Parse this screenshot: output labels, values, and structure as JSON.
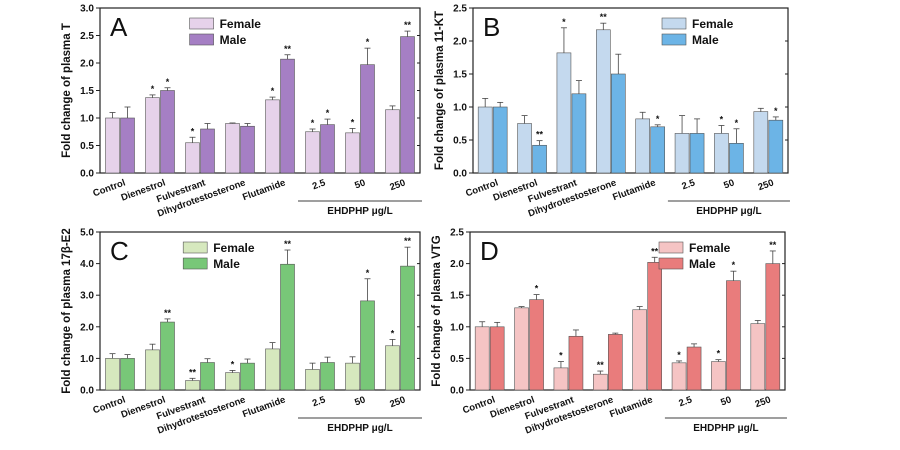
{
  "figure": {
    "group_label": "EHDPHP μg/L",
    "categories": [
      "Control",
      "Dienestrol",
      "Fulvestrant",
      "Dihydrotestosterone",
      "Flutamide",
      "2.5",
      "50",
      "250"
    ]
  },
  "chart_data": [
    {
      "type": "bar",
      "panel_letter": "A",
      "ylabel": "Fold change of plasma T",
      "ylim": [
        0,
        3.0
      ],
      "yticks": [
        "0.0",
        "0.5",
        "1.0",
        "1.5",
        "2.0",
        "2.5",
        "3.0"
      ],
      "yticks_values": [
        0,
        0.5,
        1.0,
        1.5,
        2.0,
        2.5,
        3.0
      ],
      "categories": [
        "Control",
        "Dienestrol",
        "Fulvestrant",
        "Dihydrotestosterone",
        "Flutamide",
        "2.5",
        "50",
        "250"
      ],
      "group_label": "EHDPHP μg/L",
      "colors": {
        "female": "#e6d2ea",
        "male": "#a57fc4"
      },
      "series": [
        {
          "name": "Female",
          "values": [
            1.0,
            1.37,
            0.55,
            0.9,
            1.33,
            0.75,
            0.73,
            1.15
          ],
          "errors": [
            0.1,
            0.05,
            0.1,
            0.01,
            0.05,
            0.05,
            0.08,
            0.07
          ],
          "marks": [
            "",
            "*",
            "*",
            "",
            "*",
            "*",
            "*",
            ""
          ]
        },
        {
          "name": "Male",
          "values": [
            1.0,
            1.5,
            0.8,
            0.85,
            2.07,
            0.88,
            1.97,
            2.48
          ],
          "errors": [
            0.2,
            0.05,
            0.1,
            0.05,
            0.08,
            0.1,
            0.3,
            0.1
          ],
          "marks": [
            "",
            "*",
            "",
            "",
            "**",
            "*",
            "*",
            "**"
          ]
        }
      ]
    },
    {
      "type": "bar",
      "panel_letter": "B",
      "ylabel": "Fold change of plasma 11-KT",
      "ylim": [
        0,
        2.5
      ],
      "yticks": [
        "0.0",
        "0.5",
        "1.0",
        "1.5",
        "2.0",
        "2.5"
      ],
      "yticks_values": [
        0,
        0.5,
        1.0,
        1.5,
        2.0,
        2.5
      ],
      "categories": [
        "Control",
        "Dienestrol",
        "Fulvestrant",
        "Dihydrotestosterone",
        "Flutamide",
        "2.5",
        "50",
        "250"
      ],
      "group_label": "EHDPHP μg/L",
      "colors": {
        "female": "#c4d9ee",
        "male": "#6cb4e6"
      },
      "series": [
        {
          "name": "Female",
          "values": [
            1.0,
            0.75,
            1.82,
            2.17,
            0.82,
            0.6,
            0.6,
            0.93
          ],
          "errors": [
            0.13,
            0.12,
            0.38,
            0.1,
            0.1,
            0.27,
            0.12,
            0.05
          ],
          "marks": [
            "",
            "",
            "*",
            "**",
            "",
            "",
            "*",
            ""
          ]
        },
        {
          "name": "Male",
          "values": [
            1.0,
            0.42,
            1.2,
            1.5,
            0.7,
            0.6,
            0.45,
            0.8
          ],
          "errors": [
            0.07,
            0.07,
            0.2,
            0.3,
            0.03,
            0.22,
            0.22,
            0.05
          ],
          "marks": [
            "",
            "**",
            "",
            "",
            "*",
            "",
            "*",
            "*"
          ]
        }
      ]
    },
    {
      "type": "bar",
      "panel_letter": "C",
      "ylabel": "Fold change of plasma 17β-E2",
      "ylim": [
        0,
        5.0
      ],
      "yticks": [
        "0.0",
        "1.0",
        "2.0",
        "3.0",
        "4.0",
        "5.0"
      ],
      "yticks_values": [
        0,
        1.0,
        2.0,
        3.0,
        4.0,
        5.0
      ],
      "categories": [
        "Control",
        "Dienestrol",
        "Fulvestrant",
        "Dihydrotestosterone",
        "Flutamide",
        "2.5",
        "50",
        "250"
      ],
      "group_label": "EHDPHP μg/L",
      "colors": {
        "female": "#d6e8be",
        "male": "#78c778"
      },
      "series": [
        {
          "name": "Female",
          "values": [
            1.0,
            1.27,
            0.3,
            0.55,
            1.3,
            0.65,
            0.85,
            1.4
          ],
          "errors": [
            0.15,
            0.18,
            0.07,
            0.07,
            0.2,
            0.2,
            0.2,
            0.2
          ],
          "marks": [
            "",
            "",
            "**",
            "*",
            "",
            "",
            "",
            "*"
          ]
        },
        {
          "name": "Male",
          "values": [
            1.0,
            2.15,
            0.87,
            0.85,
            3.98,
            0.87,
            2.82,
            3.92
          ],
          "errors": [
            0.12,
            0.1,
            0.12,
            0.13,
            0.45,
            0.17,
            0.7,
            0.6
          ],
          "marks": [
            "",
            "**",
            "",
            "",
            "**",
            "",
            "*",
            "**"
          ]
        }
      ]
    },
    {
      "type": "bar",
      "panel_letter": "D",
      "ylabel": "Fold change of plasma VTG",
      "ylim": [
        0,
        2.5
      ],
      "yticks": [
        "0.0",
        "0.5",
        "1.0",
        "1.5",
        "2.0",
        "2.5"
      ],
      "yticks_values": [
        0,
        0.5,
        1.0,
        1.5,
        2.0,
        2.5
      ],
      "categories": [
        "Control",
        "Dienestrol",
        "Fulvestrant",
        "Dihydrotestosterone",
        "Flutamide",
        "2.5",
        "50",
        "250"
      ],
      "group_label": "EHDPHP μg/L",
      "colors": {
        "female": "#f5c4c4",
        "male": "#e97c7c"
      },
      "series": [
        {
          "name": "Female",
          "values": [
            1.0,
            1.3,
            0.35,
            0.25,
            1.27,
            0.43,
            0.45,
            1.05
          ],
          "errors": [
            0.08,
            0.02,
            0.1,
            0.05,
            0.05,
            0.03,
            0.03,
            0.05
          ],
          "marks": [
            "",
            "",
            "*",
            "**",
            "",
            "*",
            "*",
            ""
          ]
        },
        {
          "name": "Male",
          "values": [
            1.0,
            1.43,
            0.85,
            0.88,
            2.02,
            0.68,
            1.73,
            2.0
          ],
          "errors": [
            0.07,
            0.08,
            0.1,
            0.02,
            0.08,
            0.05,
            0.15,
            0.2
          ],
          "marks": [
            "",
            "*",
            "",
            "",
            "**",
            "",
            "*",
            "**"
          ]
        }
      ]
    }
  ]
}
